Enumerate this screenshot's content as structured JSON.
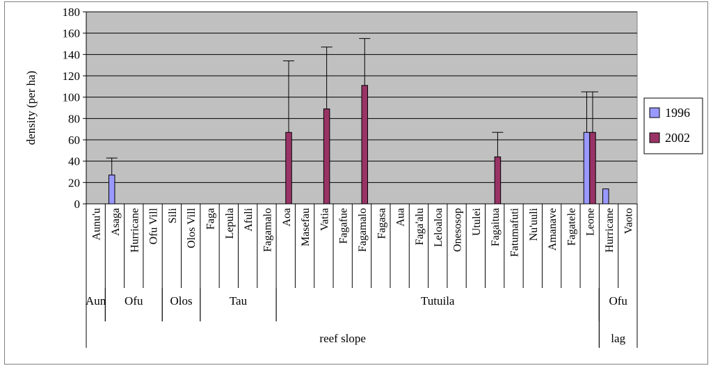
{
  "chart_data": {
    "type": "bar",
    "title": "",
    "xlabel": "",
    "ylabel": "density (per ha)",
    "ylim": [
      0,
      180
    ],
    "yticks": [
      0,
      20,
      40,
      60,
      80,
      100,
      120,
      140,
      160,
      180
    ],
    "grid": true,
    "legend_position": "right",
    "plot_background": "#c0c0c0",
    "categories": [
      "Aunu'u",
      "Asaga",
      "Hurricane",
      "Ofu Vill",
      "Sili",
      "Olos Vill",
      "Faga",
      "Lepula",
      "Afuli",
      "Fagamalo",
      "Aoa",
      "Masefau",
      "Vatia",
      "Fagafue",
      "Fagamalo",
      "Fagasa",
      "Aua",
      "Faga'alu",
      "Leloaloa",
      "Onesosop",
      "Utulei",
      "Fagaitua",
      "Fatumafuti",
      "Nu'uuli",
      "Amanave",
      "Fagatele",
      "Leone",
      "Hurricane",
      "Vaoto"
    ],
    "series": [
      {
        "name": "1996",
        "color": "#9999ff",
        "values": [
          0,
          27,
          0,
          0,
          0,
          0,
          0,
          0,
          0,
          0,
          0,
          0,
          0,
          0,
          0,
          0,
          0,
          0,
          0,
          0,
          0,
          0,
          0,
          0,
          0,
          0,
          67,
          14,
          0
        ],
        "errors": [
          0,
          16,
          0,
          0,
          0,
          0,
          0,
          0,
          0,
          0,
          0,
          0,
          0,
          0,
          0,
          0,
          0,
          0,
          0,
          0,
          0,
          0,
          0,
          0,
          0,
          0,
          38,
          0,
          0
        ]
      },
      {
        "name": "2002",
        "color": "#993366",
        "values": [
          0,
          0,
          0,
          0,
          0,
          0,
          0,
          0,
          0,
          0,
          67,
          0,
          89,
          0,
          111,
          0,
          0,
          0,
          0,
          0,
          0,
          44,
          0,
          0,
          0,
          0,
          67,
          0,
          0
        ],
        "errors": [
          0,
          0,
          0,
          0,
          0,
          0,
          0,
          0,
          0,
          0,
          67,
          0,
          58,
          0,
          44,
          0,
          0,
          0,
          0,
          0,
          0,
          23,
          0,
          0,
          0,
          0,
          38,
          0,
          0
        ]
      }
    ],
    "group_levels": [
      [
        {
          "label": "Aun",
          "start": 0,
          "end": 0
        },
        {
          "label": "Ofu",
          "start": 1,
          "end": 3
        },
        {
          "label": "Olos",
          "start": 4,
          "end": 5
        },
        {
          "label": "Tau",
          "start": 6,
          "end": 9
        },
        {
          "label": "Tutuila",
          "start": 10,
          "end": 26
        },
        {
          "label": "Ofu",
          "start": 27,
          "end": 28
        }
      ],
      [
        {
          "label": "reef slope",
          "start": 0,
          "end": 26
        },
        {
          "label": "lag",
          "start": 27,
          "end": 28
        }
      ]
    ]
  }
}
